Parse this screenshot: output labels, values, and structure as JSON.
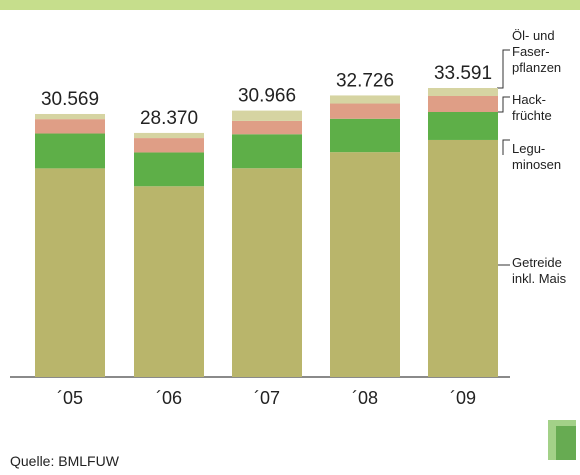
{
  "chart_data": {
    "type": "stacked-bar",
    "categories": [
      "´05",
      "´06",
      "´07",
      "´08",
      "´09"
    ],
    "values": [
      30569,
      28370,
      30966,
      32726,
      33591
    ],
    "value_labels": [
      "30.569",
      "28.370",
      "30.966",
      "32.726",
      "33.591"
    ],
    "series": [
      {
        "name": "Getreide\ninkl. Mais",
        "color": "#b9b56b",
        "values": [
          24250,
          22170,
          24266,
          26136,
          27551
        ]
      },
      {
        "name": "Legu-\nminosen",
        "color": "#5eaf48",
        "values": [
          4050,
          3930,
          3950,
          3880,
          3250
        ]
      },
      {
        "name": "Hack-\nfrüchte",
        "color": "#df9e86",
        "values": [
          1670,
          1670,
          1550,
          1770,
          1860
        ]
      },
      {
        "name": "Öl- und\nFaser-\npflanzen",
        "color": "#d6d4a2",
        "values": [
          600,
          600,
          1200,
          940,
          930
        ]
      }
    ],
    "source": "Quelle: BMLFUW"
  }
}
